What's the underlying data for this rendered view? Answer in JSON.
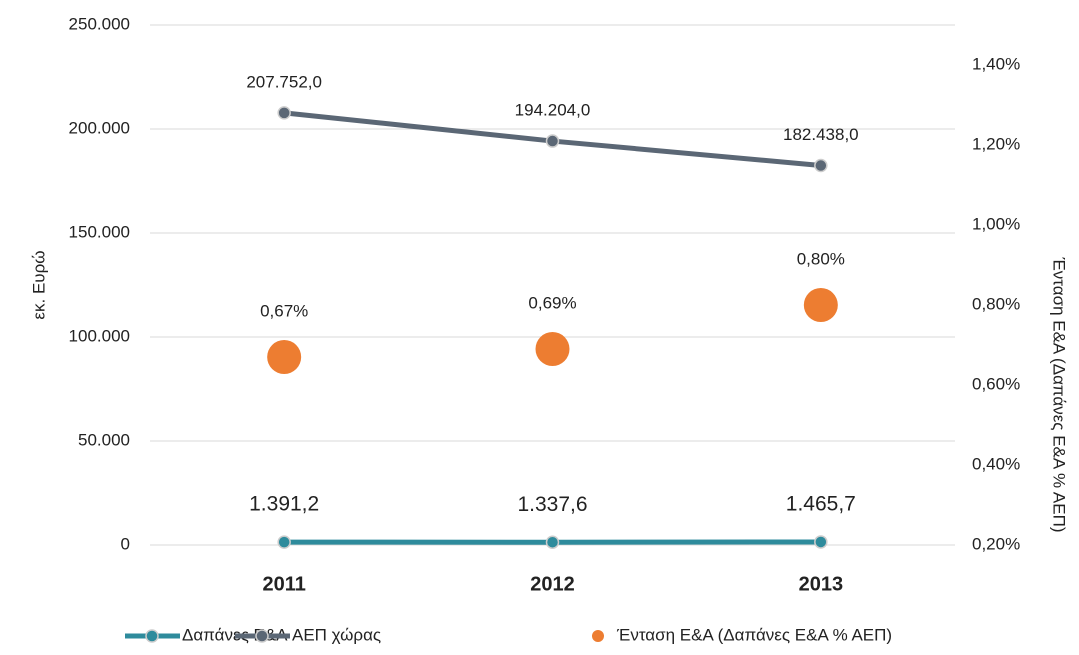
{
  "chart_data": {
    "type": "line",
    "categories": [
      "2011",
      "2012",
      "2013"
    ],
    "y_label": "εκ. Ευρώ",
    "y2_label": "Ένταση Ε&Α (Δαπάνες Ε&Α % ΑΕΠ)",
    "ylim": [
      0,
      250000
    ],
    "yticks": [
      0,
      {
        "value": 50000,
        "label": "50.000"
      },
      {
        "value": 100000,
        "label": "100.000"
      },
      {
        "value": 150000,
        "label": "150.000"
      },
      {
        "value": 200000,
        "label": "200.000"
      },
      {
        "value": 250000,
        "label": "250.000"
      }
    ],
    "y2lim": [
      0.2,
      1.5
    ],
    "y2ticks": [
      {
        "value": 0.2,
        "label": "0,20%"
      },
      {
        "value": 0.4,
        "label": "0,40%"
      },
      {
        "value": 0.6,
        "label": "0,60%"
      },
      {
        "value": 0.8,
        "label": "0,80%"
      },
      {
        "value": 1.0,
        "label": "1,00%"
      },
      {
        "value": 1.2,
        "label": "1,20%"
      },
      {
        "value": 1.4,
        "label": "1,40%"
      }
    ],
    "grid": true,
    "legend": "bottom",
    "series": [
      {
        "name": "Δαπάνες Ε&Α",
        "type": "line",
        "color": "#2e8b9c",
        "values": [
          1391.2,
          1337.6,
          1465.7
        ],
        "value_labels": [
          "1.391,2",
          "1.337,6",
          "1.465,7"
        ]
      },
      {
        "name": "ΑΕΠ χώρας",
        "type": "line",
        "color": "#5b6775",
        "values": [
          207752,
          194204,
          182438
        ],
        "value_labels": [
          "207.752,0",
          "194.204,0",
          "182.438,0"
        ]
      },
      {
        "name": "Ένταση Ε&Α (Δαπάνες Ε&Α % ΑΕΠ)",
        "type": "scatter",
        "axis": "y2",
        "color": "#ed7d31",
        "values": [
          0.67,
          0.69,
          0.8
        ],
        "value_labels": [
          "0,67%",
          "0,69%",
          "0,80%"
        ]
      }
    ]
  }
}
